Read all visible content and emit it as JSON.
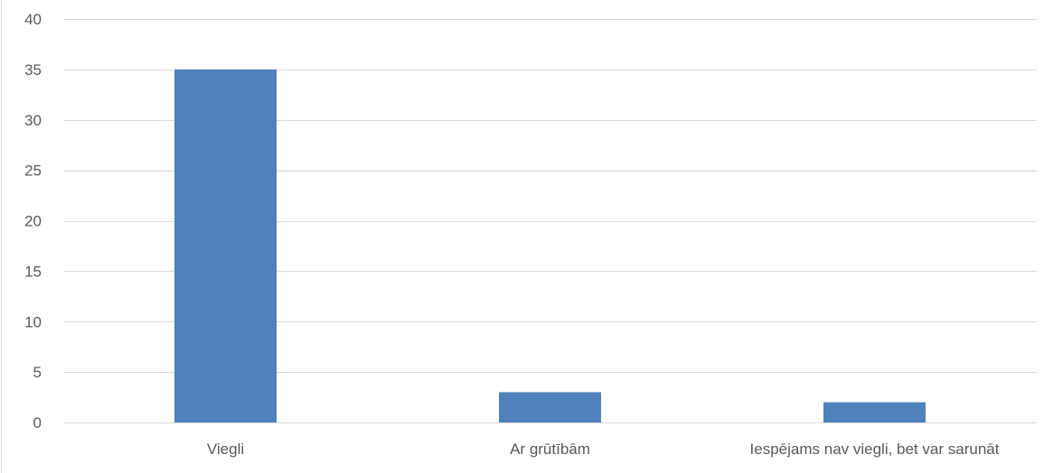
{
  "chart_data": {
    "type": "bar",
    "categories": [
      "Viegli",
      "Ar grūtībām",
      "Iespējams nav viegli, bet var sarunāt"
    ],
    "values": [
      35,
      3,
      2
    ],
    "ylim": [
      0,
      40
    ],
    "yticks": [
      0,
      5,
      10,
      15,
      20,
      25,
      30,
      35,
      40
    ],
    "grid": true,
    "bar_color": "#4f81bd",
    "gridline_color": "#d9d9d9",
    "axis_text_color": "#595959"
  }
}
